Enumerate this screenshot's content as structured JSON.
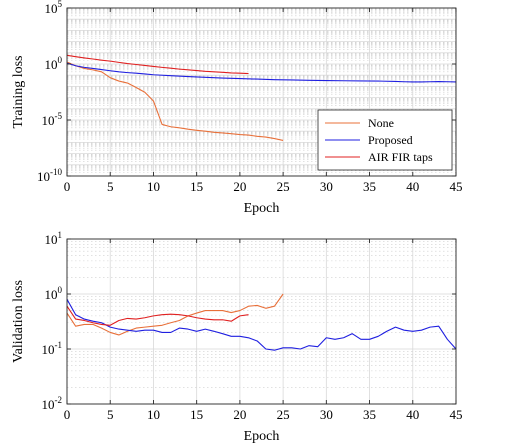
{
  "chart_data": [
    {
      "type": "line",
      "panel": "top",
      "xlabel": "Epoch",
      "ylabel": "Training loss",
      "yscale": "log",
      "xlim": [
        0,
        45
      ],
      "ylim": [
        1e-10,
        100000.0
      ],
      "xticks": [
        0,
        5,
        10,
        15,
        20,
        25,
        30,
        35,
        40,
        45
      ],
      "yticks": [
        {
          "base": "10",
          "exp": "5",
          "value": 100000.0
        },
        {
          "base": "10",
          "exp": "0",
          "value": 1
        },
        {
          "base": "10",
          "exp": "-5",
          "value": 1e-05
        },
        {
          "base": "10",
          "exp": "-10",
          "value": 1e-10
        }
      ],
      "grid": true,
      "legend": {
        "position": "lower-right",
        "entries": [
          "None",
          "Proposed",
          "AIR FIR taps"
        ]
      },
      "series": [
        {
          "name": "None",
          "color": "#e8703a",
          "x": [
            0,
            1,
            2,
            3,
            4,
            5,
            6,
            7,
            8,
            9,
            10,
            11,
            12,
            13,
            14,
            15,
            16,
            17,
            18,
            19,
            20,
            21,
            22,
            23,
            24,
            25
          ],
          "y": [
            1.5,
            0.7,
            0.4,
            0.3,
            0.2,
            0.06,
            0.03,
            0.02,
            0.008,
            0.003,
            0.0005,
            4e-06,
            2.5e-06,
            2e-06,
            1.5e-06,
            1.2e-06,
            1e-06,
            8e-07,
            7e-07,
            6e-07,
            5e-07,
            4.5e-07,
            3.5e-07,
            3e-07,
            2.2e-07,
            1.5e-07
          ]
        },
        {
          "name": "Proposed",
          "color": "#1f1fe0",
          "x": [
            0,
            1,
            2,
            3,
            4,
            5,
            6,
            7,
            8,
            9,
            10,
            12,
            14,
            16,
            18,
            20,
            22,
            24,
            26,
            28,
            30,
            32,
            34,
            36,
            38,
            39,
            40,
            41,
            42,
            43,
            44,
            45
          ],
          "y": [
            1.2,
            0.7,
            0.5,
            0.4,
            0.32,
            0.25,
            0.2,
            0.17,
            0.15,
            0.13,
            0.11,
            0.09,
            0.075,
            0.065,
            0.055,
            0.05,
            0.045,
            0.04,
            0.038,
            0.035,
            0.033,
            0.032,
            0.031,
            0.03,
            0.028,
            0.026,
            0.025,
            0.025,
            0.026,
            0.027,
            0.026,
            0.025
          ]
        },
        {
          "name": "AIR FIR taps",
          "color": "#e02020",
          "x": [
            0,
            1,
            2,
            3,
            4,
            5,
            6,
            7,
            8,
            9,
            10,
            11,
            12,
            13,
            14,
            15,
            16,
            17,
            18,
            19,
            20,
            21
          ],
          "y": [
            6,
            4.5,
            3.5,
            2.8,
            2.2,
            1.8,
            1.4,
            1.1,
            0.9,
            0.75,
            0.6,
            0.5,
            0.42,
            0.35,
            0.3,
            0.26,
            0.22,
            0.2,
            0.18,
            0.16,
            0.15,
            0.14
          ]
        }
      ]
    },
    {
      "type": "line",
      "panel": "bottom",
      "xlabel": "Epoch",
      "ylabel": "Validation loss",
      "yscale": "log",
      "xlim": [
        0,
        45
      ],
      "ylim": [
        0.01,
        10
      ],
      "xticks": [
        0,
        5,
        10,
        15,
        20,
        25,
        30,
        35,
        40,
        45
      ],
      "yticks": [
        {
          "base": "10",
          "exp": "1",
          "value": 10
        },
        {
          "base": "10",
          "exp": "0",
          "value": 1
        },
        {
          "base": "10",
          "exp": "-1",
          "value": 0.1
        },
        {
          "base": "10",
          "exp": "-2",
          "value": 0.01
        }
      ],
      "grid": true,
      "series": [
        {
          "name": "None",
          "color": "#e8703a",
          "x": [
            0,
            1,
            2,
            3,
            4,
            5,
            6,
            7,
            8,
            9,
            10,
            11,
            12,
            13,
            14,
            15,
            16,
            17,
            18,
            19,
            20,
            21,
            22,
            23,
            24,
            25
          ],
          "y": [
            0.45,
            0.26,
            0.28,
            0.28,
            0.24,
            0.2,
            0.18,
            0.21,
            0.24,
            0.25,
            0.26,
            0.27,
            0.3,
            0.33,
            0.4,
            0.45,
            0.5,
            0.5,
            0.5,
            0.46,
            0.5,
            0.6,
            0.62,
            0.55,
            0.6,
            1.0
          ]
        },
        {
          "name": "Proposed",
          "color": "#1f1fe0",
          "x": [
            0,
            1,
            2,
            3,
            4,
            5,
            6,
            7,
            8,
            9,
            10,
            11,
            12,
            13,
            14,
            15,
            16,
            17,
            18,
            19,
            20,
            21,
            22,
            23,
            24,
            25,
            26,
            27,
            28,
            29,
            30,
            31,
            32,
            33,
            34,
            35,
            36,
            37,
            38,
            39,
            40,
            41,
            42,
            43,
            44,
            45
          ],
          "y": [
            0.8,
            0.42,
            0.35,
            0.32,
            0.3,
            0.25,
            0.23,
            0.22,
            0.21,
            0.22,
            0.22,
            0.2,
            0.2,
            0.24,
            0.23,
            0.21,
            0.23,
            0.21,
            0.19,
            0.17,
            0.17,
            0.16,
            0.14,
            0.1,
            0.095,
            0.105,
            0.105,
            0.1,
            0.115,
            0.11,
            0.16,
            0.15,
            0.16,
            0.19,
            0.15,
            0.15,
            0.17,
            0.21,
            0.25,
            0.22,
            0.21,
            0.22,
            0.25,
            0.26,
            0.15,
            0.1
          ]
        },
        {
          "name": "AIR FIR taps",
          "color": "#e02020",
          "x": [
            0,
            1,
            2,
            3,
            4,
            5,
            6,
            7,
            8,
            9,
            10,
            11,
            12,
            13,
            14,
            15,
            16,
            17,
            18,
            19,
            20,
            21
          ],
          "y": [
            0.6,
            0.35,
            0.33,
            0.3,
            0.28,
            0.27,
            0.33,
            0.36,
            0.35,
            0.37,
            0.4,
            0.42,
            0.43,
            0.42,
            0.4,
            0.37,
            0.35,
            0.34,
            0.34,
            0.32,
            0.4,
            0.42
          ]
        }
      ]
    }
  ]
}
